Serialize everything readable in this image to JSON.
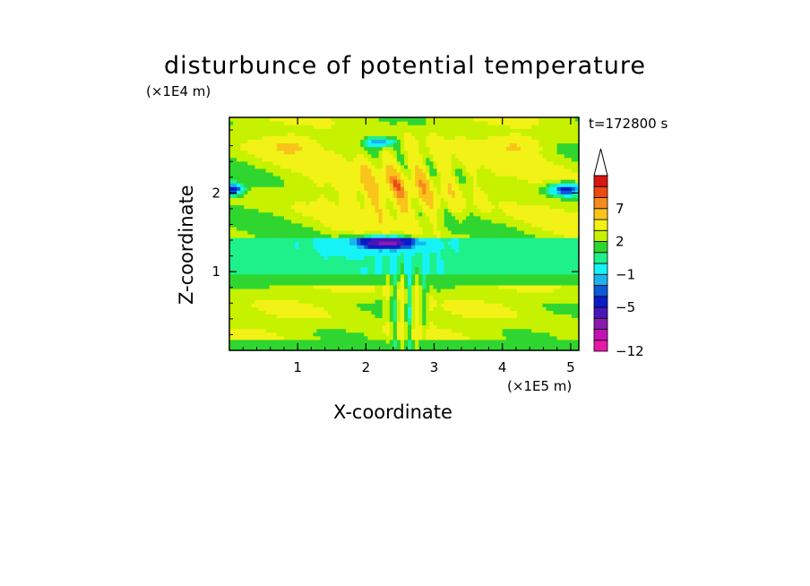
{
  "chart_data": {
    "type": "heatmap",
    "title": "disturbunce of potential temperature",
    "xlabel": "X-coordinate",
    "ylabel": "Z-coordinate",
    "x_unit": "(×1E5 m)",
    "z_unit": "(×1E4 m)",
    "time_label": "t=172800 s",
    "xlim": [
      0,
      5.12
    ],
    "ylim": [
      0,
      2.96
    ],
    "x_ticks": [
      1,
      2,
      3,
      4,
      5
    ],
    "y_ticks": [
      1,
      2
    ],
    "colorbar": {
      "levels": [
        -12,
        -11,
        -9,
        -7,
        -5,
        -4,
        -3,
        -1,
        0,
        1,
        2,
        4,
        6,
        7,
        9,
        11
      ],
      "colors": [
        "#e619a8",
        "#c312b4",
        "#8a1aad",
        "#4a14b8",
        "#0a1cc8",
        "#0b5ad8",
        "#1ab3ee",
        "#16f3f6",
        "#1ef08a",
        "#30d630",
        "#c6f200",
        "#f2f216",
        "#f9c41b",
        "#f58a1f",
        "#ec4a12",
        "#d81810",
        "#f2a8a8"
      ],
      "tick_labels": [
        "-12",
        "-5",
        "-1",
        "2",
        "7"
      ],
      "extend": "max"
    },
    "field_description_bands": [
      {
        "z_range": [
          0,
          0.15
        ],
        "value": 0.5
      },
      {
        "z_range": [
          0.15,
          0.8
        ],
        "value": 1.5
      },
      {
        "z_range": [
          0.8,
          1.4
        ],
        "value": -1
      },
      {
        "z_range": [
          1.4,
          2.9
        ],
        "value": 1.5
      }
    ]
  }
}
